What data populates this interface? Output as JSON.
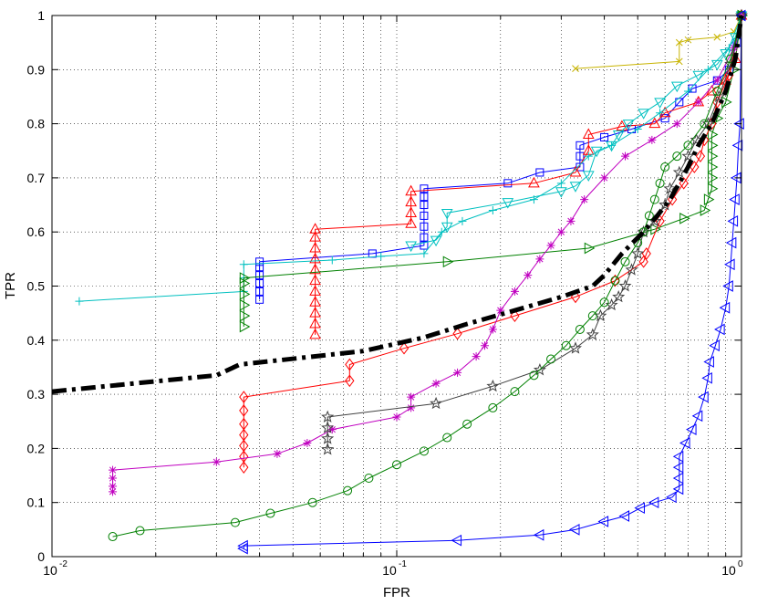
{
  "chart_data": {
    "type": "line",
    "title": "",
    "xlabel": "FPR",
    "ylabel": "TPR",
    "xscale": "log",
    "xlim": [
      0.01,
      1
    ],
    "ylim": [
      0,
      1
    ],
    "grid": true,
    "x_ticks": [
      {
        "value": 0.01,
        "label": "10",
        "exp": "-2"
      },
      {
        "value": 0.1,
        "label": "10",
        "exp": "-1"
      },
      {
        "value": 1,
        "label": "10",
        "exp": "0"
      }
    ],
    "y_ticks": [
      "0",
      "0.1",
      "0.2",
      "0.3",
      "0.4",
      "0.5",
      "0.6",
      "0.7",
      "0.8",
      "0.9",
      "1"
    ],
    "series": [
      {
        "color": "#c8b400",
        "marker": "x",
        "values": [
          [
            0.33,
            0.902
          ],
          [
            0.66,
            0.915
          ],
          [
            0.66,
            0.95
          ],
          [
            0.7,
            0.955
          ],
          [
            0.85,
            0.96
          ],
          [
            0.95,
            0.97
          ],
          [
            1.0,
            1.0
          ]
        ]
      },
      {
        "color": "#0000ff",
        "marker": "square",
        "values": [
          [
            0.04,
            0.475
          ],
          [
            0.04,
            0.49
          ],
          [
            0.04,
            0.505
          ],
          [
            0.04,
            0.52
          ],
          [
            0.04,
            0.535
          ],
          [
            0.04,
            0.545
          ],
          [
            0.085,
            0.56
          ],
          [
            0.12,
            0.575
          ],
          [
            0.12,
            0.59
          ],
          [
            0.12,
            0.61
          ],
          [
            0.12,
            0.63
          ],
          [
            0.12,
            0.65
          ],
          [
            0.12,
            0.665
          ],
          [
            0.12,
            0.68
          ],
          [
            0.21,
            0.69
          ],
          [
            0.26,
            0.71
          ],
          [
            0.34,
            0.72
          ],
          [
            0.34,
            0.74
          ],
          [
            0.34,
            0.76
          ],
          [
            0.4,
            0.775
          ],
          [
            0.48,
            0.79
          ],
          [
            0.6,
            0.81
          ],
          [
            0.66,
            0.84
          ],
          [
            0.72,
            0.865
          ],
          [
            0.85,
            0.88
          ],
          [
            0.92,
            0.9
          ],
          [
            0.97,
            0.95
          ],
          [
            1.0,
            1.0
          ]
        ]
      },
      {
        "color": "#ff0000",
        "marker": "triangle-up",
        "values": [
          [
            0.058,
            0.41
          ],
          [
            0.058,
            0.43
          ],
          [
            0.058,
            0.45
          ],
          [
            0.058,
            0.47
          ],
          [
            0.058,
            0.49
          ],
          [
            0.058,
            0.51
          ],
          [
            0.058,
            0.53
          ],
          [
            0.058,
            0.55
          ],
          [
            0.058,
            0.57
          ],
          [
            0.058,
            0.59
          ],
          [
            0.058,
            0.605
          ],
          [
            0.11,
            0.615
          ],
          [
            0.11,
            0.635
          ],
          [
            0.11,
            0.655
          ],
          [
            0.11,
            0.675
          ],
          [
            0.25,
            0.69
          ],
          [
            0.33,
            0.71
          ],
          [
            0.36,
            0.75
          ],
          [
            0.36,
            0.78
          ],
          [
            0.45,
            0.795
          ],
          [
            0.56,
            0.8
          ],
          [
            0.6,
            0.82
          ],
          [
            0.75,
            0.84
          ],
          [
            0.82,
            0.86
          ],
          [
            0.9,
            0.88
          ],
          [
            0.96,
            0.92
          ],
          [
            1.0,
            1.0
          ]
        ]
      },
      {
        "color": "#00c0c0",
        "marker": "plus",
        "values": [
          [
            0.012,
            0.472
          ],
          [
            0.036,
            0.49
          ],
          [
            0.036,
            0.515
          ],
          [
            0.036,
            0.54
          ],
          [
            0.065,
            0.548
          ],
          [
            0.09,
            0.555
          ],
          [
            0.12,
            0.56
          ],
          [
            0.135,
            0.6
          ],
          [
            0.155,
            0.62
          ],
          [
            0.19,
            0.64
          ],
          [
            0.25,
            0.66
          ],
          [
            0.3,
            0.69
          ],
          [
            0.36,
            0.74
          ],
          [
            0.42,
            0.76
          ],
          [
            0.5,
            0.79
          ],
          [
            0.58,
            0.82
          ],
          [
            0.7,
            0.86
          ],
          [
            0.8,
            0.9
          ],
          [
            0.92,
            0.94
          ],
          [
            1.0,
            1.0
          ]
        ]
      },
      {
        "color": "#00c0c0",
        "marker": "triangle-down",
        "values": [
          [
            0.11,
            0.575
          ],
          [
            0.13,
            0.585
          ],
          [
            0.14,
            0.61
          ],
          [
            0.14,
            0.635
          ],
          [
            0.21,
            0.655
          ],
          [
            0.3,
            0.675
          ],
          [
            0.33,
            0.685
          ],
          [
            0.36,
            0.705
          ],
          [
            0.38,
            0.75
          ],
          [
            0.42,
            0.76
          ],
          [
            0.44,
            0.78
          ],
          [
            0.47,
            0.8
          ],
          [
            0.52,
            0.82
          ],
          [
            0.58,
            0.84
          ],
          [
            0.65,
            0.87
          ],
          [
            0.75,
            0.89
          ],
          [
            0.85,
            0.91
          ],
          [
            0.9,
            0.93
          ],
          [
            0.96,
            0.96
          ],
          [
            1.0,
            1.0
          ]
        ]
      },
      {
        "color": "#008000",
        "marker": "triangle-right",
        "values": [
          [
            0.036,
            0.425
          ],
          [
            0.036,
            0.445
          ],
          [
            0.036,
            0.465
          ],
          [
            0.036,
            0.485
          ],
          [
            0.036,
            0.505
          ],
          [
            0.036,
            0.515
          ],
          [
            0.14,
            0.545
          ],
          [
            0.36,
            0.57
          ],
          [
            0.56,
            0.605
          ],
          [
            0.68,
            0.625
          ],
          [
            0.78,
            0.64
          ],
          [
            0.8,
            0.66
          ],
          [
            0.82,
            0.68
          ],
          [
            0.82,
            0.7
          ],
          [
            0.82,
            0.72
          ],
          [
            0.82,
            0.74
          ],
          [
            0.82,
            0.76
          ],
          [
            0.82,
            0.78
          ],
          [
            0.85,
            0.81
          ],
          [
            0.9,
            0.84
          ],
          [
            0.95,
            0.9
          ],
          [
            1.0,
            1.0
          ]
        ]
      },
      {
        "color": "#ff0000",
        "marker": "diamond",
        "values": [
          [
            0.036,
            0.165
          ],
          [
            0.036,
            0.185
          ],
          [
            0.036,
            0.205
          ],
          [
            0.036,
            0.225
          ],
          [
            0.036,
            0.245
          ],
          [
            0.036,
            0.27
          ],
          [
            0.036,
            0.295
          ],
          [
            0.073,
            0.325
          ],
          [
            0.073,
            0.355
          ],
          [
            0.105,
            0.385
          ],
          [
            0.15,
            0.412
          ],
          [
            0.22,
            0.445
          ],
          [
            0.33,
            0.48
          ],
          [
            0.43,
            0.51
          ],
          [
            0.52,
            0.545
          ],
          [
            0.53,
            0.56
          ],
          [
            0.58,
            0.62
          ],
          [
            0.63,
            0.66
          ],
          [
            0.68,
            0.69
          ],
          [
            0.73,
            0.72
          ],
          [
            0.76,
            0.74
          ],
          [
            0.78,
            0.77
          ],
          [
            0.82,
            0.8
          ],
          [
            0.85,
            0.84
          ],
          [
            0.92,
            0.89
          ],
          [
            1.0,
            1.0
          ]
        ]
      },
      {
        "color": "#c000c0",
        "marker": "asterisk",
        "values": [
          [
            0.015,
            0.12
          ],
          [
            0.015,
            0.13
          ],
          [
            0.015,
            0.145
          ],
          [
            0.015,
            0.16
          ],
          [
            0.03,
            0.175
          ],
          [
            0.045,
            0.19
          ],
          [
            0.055,
            0.21
          ],
          [
            0.065,
            0.235
          ],
          [
            0.1,
            0.258
          ],
          [
            0.11,
            0.275
          ],
          [
            0.11,
            0.295
          ],
          [
            0.13,
            0.32
          ],
          [
            0.15,
            0.34
          ],
          [
            0.17,
            0.37
          ],
          [
            0.18,
            0.39
          ],
          [
            0.19,
            0.42
          ],
          [
            0.2,
            0.455
          ],
          [
            0.22,
            0.49
          ],
          [
            0.24,
            0.52
          ],
          [
            0.26,
            0.55
          ],
          [
            0.28,
            0.575
          ],
          [
            0.3,
            0.6
          ],
          [
            0.32,
            0.62
          ],
          [
            0.35,
            0.66
          ],
          [
            0.4,
            0.7
          ],
          [
            0.46,
            0.74
          ],
          [
            0.55,
            0.77
          ],
          [
            0.65,
            0.8
          ],
          [
            0.75,
            0.84
          ],
          [
            0.85,
            0.88
          ],
          [
            0.95,
            0.94
          ],
          [
            1.0,
            1.0
          ]
        ]
      },
      {
        "color": "#404040",
        "marker": "star",
        "values": [
          [
            0.063,
            0.198
          ],
          [
            0.063,
            0.218
          ],
          [
            0.063,
            0.238
          ],
          [
            0.063,
            0.258
          ],
          [
            0.13,
            0.283
          ],
          [
            0.19,
            0.315
          ],
          [
            0.26,
            0.345
          ],
          [
            0.33,
            0.385
          ],
          [
            0.37,
            0.41
          ],
          [
            0.39,
            0.445
          ],
          [
            0.42,
            0.465
          ],
          [
            0.44,
            0.48
          ],
          [
            0.46,
            0.5
          ],
          [
            0.48,
            0.53
          ],
          [
            0.5,
            0.56
          ],
          [
            0.52,
            0.6
          ],
          [
            0.56,
            0.62
          ],
          [
            0.6,
            0.65
          ],
          [
            0.62,
            0.68
          ],
          [
            0.66,
            0.71
          ],
          [
            0.7,
            0.74
          ],
          [
            0.74,
            0.77
          ],
          [
            0.8,
            0.8
          ],
          [
            0.86,
            0.85
          ],
          [
            0.93,
            0.91
          ],
          [
            1.0,
            1.0
          ]
        ]
      },
      {
        "color": "#008000",
        "marker": "circle",
        "values": [
          [
            0.015,
            0.037
          ],
          [
            0.018,
            0.048
          ],
          [
            0.034,
            0.063
          ],
          [
            0.043,
            0.08
          ],
          [
            0.057,
            0.1
          ],
          [
            0.072,
            0.122
          ],
          [
            0.083,
            0.145
          ],
          [
            0.1,
            0.17
          ],
          [
            0.12,
            0.195
          ],
          [
            0.14,
            0.22
          ],
          [
            0.16,
            0.245
          ],
          [
            0.19,
            0.275
          ],
          [
            0.22,
            0.305
          ],
          [
            0.25,
            0.335
          ],
          [
            0.28,
            0.365
          ],
          [
            0.31,
            0.39
          ],
          [
            0.34,
            0.42
          ],
          [
            0.37,
            0.445
          ],
          [
            0.4,
            0.47
          ],
          [
            0.43,
            0.51
          ],
          [
            0.46,
            0.545
          ],
          [
            0.5,
            0.58
          ],
          [
            0.52,
            0.6
          ],
          [
            0.54,
            0.63
          ],
          [
            0.56,
            0.66
          ],
          [
            0.58,
            0.69
          ],
          [
            0.6,
            0.72
          ],
          [
            0.65,
            0.74
          ],
          [
            0.7,
            0.76
          ],
          [
            0.78,
            0.8
          ],
          [
            0.85,
            0.86
          ],
          [
            0.93,
            0.92
          ],
          [
            1.0,
            1.0
          ]
        ]
      },
      {
        "color": "#0000ff",
        "marker": "triangle-left",
        "values": [
          [
            0.036,
            0.015
          ],
          [
            0.036,
            0.02
          ],
          [
            0.15,
            0.03
          ],
          [
            0.26,
            0.04
          ],
          [
            0.33,
            0.05
          ],
          [
            0.4,
            0.065
          ],
          [
            0.46,
            0.075
          ],
          [
            0.51,
            0.09
          ],
          [
            0.56,
            0.1
          ],
          [
            0.63,
            0.11
          ],
          [
            0.66,
            0.125
          ],
          [
            0.66,
            0.145
          ],
          [
            0.66,
            0.165
          ],
          [
            0.66,
            0.185
          ],
          [
            0.69,
            0.21
          ],
          [
            0.72,
            0.235
          ],
          [
            0.75,
            0.26
          ],
          [
            0.78,
            0.295
          ],
          [
            0.8,
            0.33
          ],
          [
            0.81,
            0.36
          ],
          [
            0.84,
            0.39
          ],
          [
            0.87,
            0.42
          ],
          [
            0.9,
            0.46
          ],
          [
            0.92,
            0.5
          ],
          [
            0.93,
            0.54
          ],
          [
            0.94,
            0.58
          ],
          [
            0.95,
            0.62
          ],
          [
            0.96,
            0.66
          ],
          [
            0.97,
            0.7
          ],
          [
            0.98,
            0.76
          ],
          [
            0.99,
            0.8
          ],
          [
            1.0,
            1.0
          ]
        ]
      },
      {
        "color": "#000000",
        "marker": "none",
        "dash": "dashdot",
        "values": [
          [
            0.01,
            0.305
          ],
          [
            0.03,
            0.335
          ],
          [
            0.035,
            0.355
          ],
          [
            0.08,
            0.38
          ],
          [
            0.12,
            0.405
          ],
          [
            0.16,
            0.43
          ],
          [
            0.22,
            0.455
          ],
          [
            0.3,
            0.48
          ],
          [
            0.37,
            0.5
          ],
          [
            0.4,
            0.52
          ],
          [
            0.45,
            0.56
          ],
          [
            0.52,
            0.6
          ],
          [
            0.57,
            0.63
          ],
          [
            0.62,
            0.66
          ],
          [
            0.66,
            0.69
          ],
          [
            0.7,
            0.72
          ],
          [
            0.75,
            0.76
          ],
          [
            0.82,
            0.8
          ],
          [
            0.9,
            0.86
          ],
          [
            0.96,
            0.92
          ],
          [
            1.0,
            1.0
          ]
        ]
      }
    ]
  }
}
